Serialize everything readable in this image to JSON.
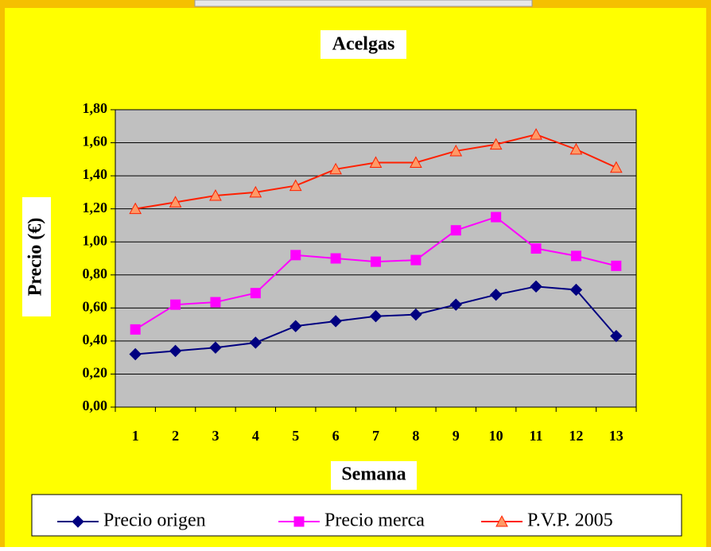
{
  "chart_data": {
    "type": "line",
    "title": "Acelgas",
    "x_label": "Semana",
    "y_label": "Precio (€)",
    "categories": [
      "1",
      "2",
      "3",
      "4",
      "5",
      "6",
      "7",
      "8",
      "9",
      "10",
      "11",
      "12",
      "13"
    ],
    "series": [
      {
        "name": "Precio origen",
        "color": "#000080",
        "marker": "diamond",
        "values": [
          0.32,
          0.34,
          0.36,
          0.39,
          0.49,
          0.52,
          0.55,
          0.56,
          0.62,
          0.68,
          0.73,
          0.71,
          0.43
        ]
      },
      {
        "name": "Precio merca",
        "color": "#ff00ff",
        "marker": "square",
        "values": [
          0.47,
          0.62,
          0.635,
          0.69,
          0.92,
          0.9,
          0.88,
          0.89,
          1.07,
          1.15,
          0.96,
          0.915,
          0.855
        ]
      },
      {
        "name": "P.V.P. 2005",
        "color": "#ff2000",
        "marker": "triangle",
        "marker_fill": "#ff9966",
        "values": [
          1.2,
          1.24,
          1.28,
          1.3,
          1.34,
          1.44,
          1.48,
          1.48,
          1.55,
          1.59,
          1.65,
          1.56,
          1.45
        ]
      }
    ],
    "ylim": [
      0,
      1.8
    ],
    "yticks": [
      {
        "value": 0,
        "label": "0,00"
      },
      {
        "value": 0.2,
        "label": "0,20"
      },
      {
        "value": 0.4,
        "label": "0,40"
      },
      {
        "value": 0.6,
        "label": "0,60"
      },
      {
        "value": 0.8,
        "label": "0,80"
      },
      {
        "value": 1.0,
        "label": "1,00"
      },
      {
        "value": 1.2,
        "label": "1,20"
      },
      {
        "value": 1.4,
        "label": "1,40"
      },
      {
        "value": 1.6,
        "label": "1,60"
      },
      {
        "value": 1.8,
        "label": "1,80"
      }
    ],
    "grid": true,
    "legend": "bottom"
  }
}
